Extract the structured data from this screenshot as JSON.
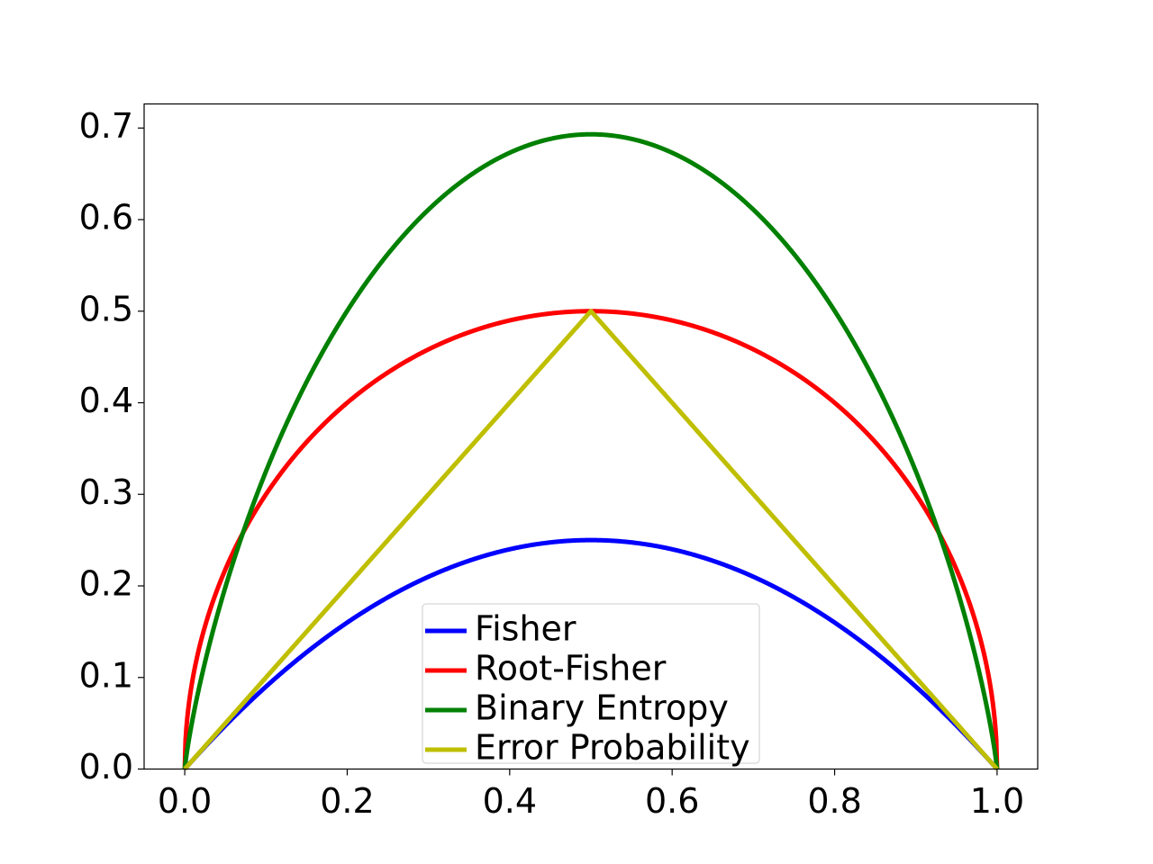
{
  "chart_data": {
    "type": "line",
    "title": "",
    "xlabel": "",
    "ylabel": "",
    "xlim": [
      -0.05,
      1.05
    ],
    "ylim": [
      0.0,
      0.7263
    ],
    "grid": false,
    "legend_position": "bottom-center",
    "x_ticks": [
      "0.0",
      "0.2",
      "0.4",
      "0.6",
      "0.8",
      "1.0"
    ],
    "y_ticks": [
      "0.0",
      "0.1",
      "0.2",
      "0.3",
      "0.4",
      "0.5",
      "0.6",
      "0.7"
    ],
    "series": [
      {
        "name": "Fisher",
        "color": "#0000ff",
        "function": "p(1-p)",
        "x": [
          0.0,
          0.1,
          0.2,
          0.3,
          0.4,
          0.5,
          0.6,
          0.7,
          0.8,
          0.9,
          1.0
        ],
        "values": [
          0.0,
          0.09,
          0.16,
          0.21,
          0.24,
          0.25,
          0.24,
          0.21,
          0.16,
          0.09,
          0.0
        ]
      },
      {
        "name": "Root-Fisher",
        "color": "#ff0000",
        "function": "sqrt(p(1-p))",
        "x": [
          0.0,
          0.1,
          0.2,
          0.3,
          0.4,
          0.5,
          0.6,
          0.7,
          0.8,
          0.9,
          1.0
        ],
        "values": [
          0.0,
          0.3,
          0.4,
          0.458,
          0.49,
          0.5,
          0.49,
          0.458,
          0.4,
          0.3,
          0.0
        ]
      },
      {
        "name": "Binary Entropy",
        "color": "#008000",
        "function": "-p ln p - (1-p) ln(1-p)",
        "x": [
          0.0,
          0.1,
          0.2,
          0.3,
          0.4,
          0.5,
          0.6,
          0.7,
          0.8,
          0.9,
          1.0
        ],
        "values": [
          0.0,
          0.325,
          0.5,
          0.611,
          0.673,
          0.693,
          0.673,
          0.611,
          0.5,
          0.325,
          0.0
        ]
      },
      {
        "name": "Error Probability",
        "color": "#bfbf00",
        "function": "min(p, 1-p)",
        "x": [
          0.0,
          0.1,
          0.2,
          0.3,
          0.4,
          0.5,
          0.6,
          0.7,
          0.8,
          0.9,
          1.0
        ],
        "values": [
          0.0,
          0.1,
          0.2,
          0.3,
          0.4,
          0.5,
          0.4,
          0.3,
          0.2,
          0.1,
          0.0
        ]
      }
    ]
  }
}
